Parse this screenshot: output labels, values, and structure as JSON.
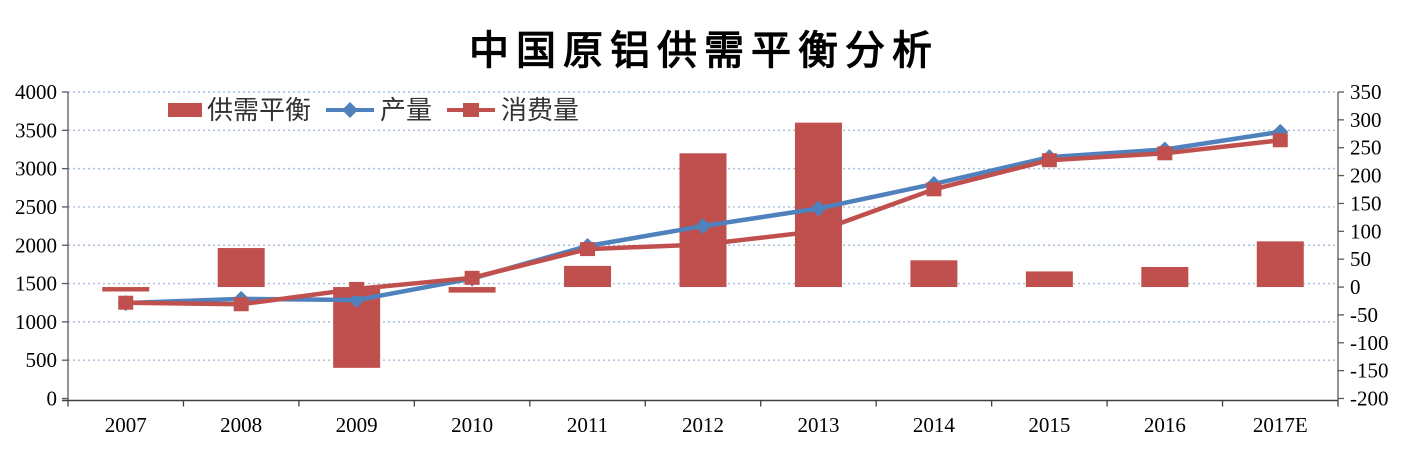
{
  "title": "中国原铝供需平衡分析",
  "colors": {
    "red": "#C0504D",
    "blue": "#4F81BD",
    "gridline": "#A6BDDB",
    "axis_line": "#595959",
    "tick_label": "#000000",
    "legend_text": "#333333",
    "background": "#FFFFFF"
  },
  "chart_data": {
    "type": "bar+line combo",
    "title": "中国原铝供需平衡分析",
    "categories": [
      "2007",
      "2008",
      "2009",
      "2010",
      "2011",
      "2012",
      "2013",
      "2014",
      "2015",
      "2016",
      "2017E"
    ],
    "series": [
      {
        "name": "供需平衡",
        "type": "bar",
        "axis": "right",
        "color": "#C0504D",
        "marker": "rect",
        "values": [
          -8,
          70,
          -145,
          -10,
          38,
          240,
          295,
          48,
          28,
          36,
          82
        ]
      },
      {
        "name": "产量",
        "type": "line",
        "axis": "left",
        "color": "#4F81BD",
        "marker": "diamond",
        "values": [
          1245,
          1300,
          1285,
          1565,
          1990,
          2250,
          2480,
          2800,
          3150,
          3250,
          3480
        ]
      },
      {
        "name": "消费量",
        "type": "line",
        "axis": "left",
        "color": "#C0504D",
        "marker": "square",
        "values": [
          1250,
          1230,
          1430,
          1575,
          1950,
          2010,
          2185,
          2730,
          3110,
          3200,
          3370
        ]
      }
    ],
    "left_axis": {
      "min": 0,
      "max": 4000,
      "step": 500,
      "tick_labels": [
        "0",
        "500",
        "1000",
        "1500",
        "2000",
        "2500",
        "3000",
        "3500",
        "4000"
      ]
    },
    "right_axis": {
      "min": -200,
      "max": 350,
      "step": 50,
      "tick_labels": [
        "-200",
        "-150",
        "-100",
        "-50",
        "0",
        "50",
        "100",
        "150",
        "200",
        "250",
        "300",
        "350"
      ]
    },
    "grid": "horizontal dotted, aligned to left axis",
    "legend_position": "top-left inside plot"
  }
}
